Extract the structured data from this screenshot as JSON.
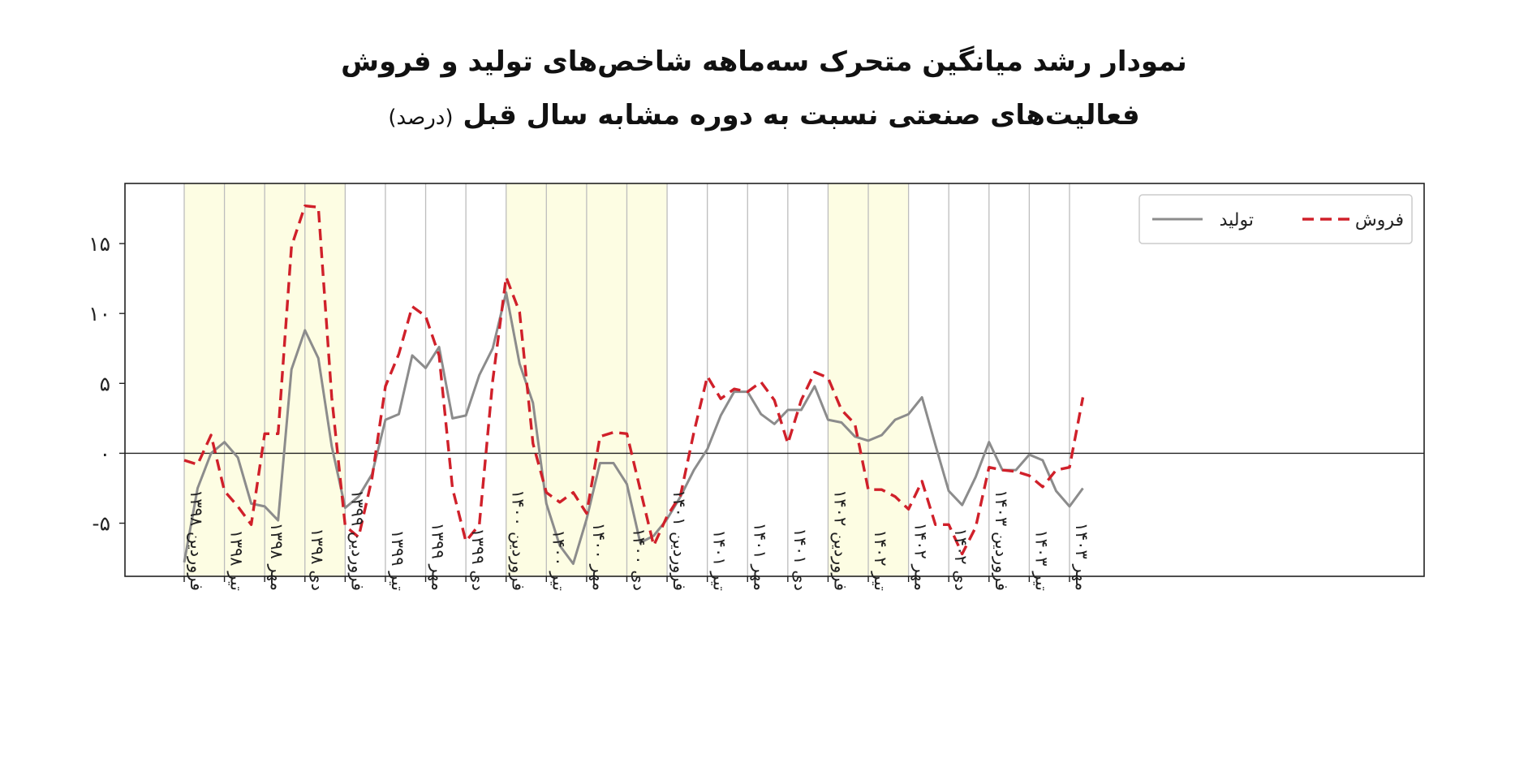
{
  "chart_data": {
    "type": "line",
    "title": "نمودار رشد میانگین متحرک سه‌ماهه شاخص‌های تولید و فروش",
    "subtitle": "فعالیت‌های صنعتی نسبت به دوره مشابه سال قبل",
    "unit": "(درصد)",
    "y_ticks": [
      {
        "value": 15,
        "label": "۱۵"
      },
      {
        "value": 10,
        "label": "۱۰"
      },
      {
        "value": 5,
        "label": "۵"
      },
      {
        "value": 0,
        "label": "۰"
      },
      {
        "value": -5,
        "label": "-۵"
      }
    ],
    "ylim": [
      -8.8,
      19.3
    ],
    "x_tick_labels": [
      "فروردین ۱۳۹۸",
      "تیر ۱۳۹۸",
      "مهر ۱۳۹۸",
      "دی ۱۳۹۸",
      "فروردین ۱۳۹۹",
      "تیر ۱۳۹۹",
      "مهر ۱۳۹۹",
      "دی ۱۳۹۹",
      "فروردین ۱۴۰۰",
      "تیر ۱۴۰۰",
      "مهر ۱۴۰۰",
      "دی ۱۴۰۰",
      "فروردین ۱۴۰۱",
      "تیر ۱۴۰۱",
      "مهر ۱۴۰۱",
      "دی ۱۴۰۱",
      "فروردین ۱۴۰۲",
      "تیر ۱۴۰۲",
      "مهر ۱۴۰۲",
      "دی ۱۴۰۲",
      "فروردین ۱۴۰۳",
      "تیر ۱۴۰۳",
      "مهر ۱۴۰۳"
    ],
    "shaded_periods": [
      {
        "from": "فروردین ۱۳۹۸",
        "to": "فروردین ۱۳۹۹"
      },
      {
        "from": "فروردین ۱۴۰۰",
        "to": "فروردین ۱۴۰۱"
      },
      {
        "from": "فروردین ۱۴۰۲",
        "to": "مهر ۱۴۰۲"
      }
    ],
    "shade_color": "#fdfde3",
    "grid_color": "#bdbdbd",
    "zero_line": true,
    "legend": {
      "placement": "top-right"
    },
    "series": [
      {
        "name": "تولید",
        "color": "#8c8c8c",
        "style": "solid",
        "values": [
          -7.8,
          -2.5,
          0,
          0.8,
          -0.3,
          -3.6,
          -3.8,
          -4.8,
          6,
          8.8,
          6.8,
          0.5,
          -3.9,
          -3.1,
          -1.5,
          2.4,
          2.8,
          7,
          6.1,
          7.6,
          2.5,
          2.7,
          5.6,
          7.5,
          11.5,
          6.4,
          3.6,
          -3.6,
          -6.6,
          -7.9,
          -4.7,
          -0.7,
          -0.7,
          -2.2,
          -6.4,
          -5.9,
          -4.7,
          -3.1,
          -1.2,
          0.3,
          2.7,
          4.4,
          4.4,
          2.8,
          2.1,
          3.1,
          3.1,
          4.8,
          2.4,
          2.2,
          1.2,
          0.9,
          1.3,
          2.4,
          2.8,
          4,
          0.6,
          -2.7,
          -3.7,
          -1.7,
          0.8,
          -1.2,
          -1.2,
          -0.1,
          -0.5,
          -2.7,
          -3.8,
          -2.5
        ]
      },
      {
        "name": "فروش",
        "color": "#d0202a",
        "style": "dashed",
        "values": [
          -0.5,
          -0.8,
          1.3,
          -2.7,
          -3.8,
          -5.1,
          1.4,
          1.4,
          14.8,
          17.7,
          17.6,
          4,
          -5.2,
          -6,
          -1.8,
          4.8,
          7.1,
          10.5,
          9.8,
          7,
          -2.5,
          -6.3,
          -5.1,
          5.2,
          12.6,
          10.1,
          0.7,
          -2.8,
          -3.5,
          -2.8,
          -4.3,
          1.2,
          1.5,
          1.4,
          -2.6,
          -6.6,
          -4.5,
          -3,
          1.5,
          5.5,
          3.9,
          4.6,
          4.4,
          5.1,
          3.8,
          0.7,
          3.8,
          5.8,
          5.4,
          3.1,
          2.1,
          -2.6,
          -2.6,
          -3.1,
          -4,
          -2,
          -5.1,
          -5.1,
          -7.2,
          -5.3,
          -1,
          -1.2,
          -1.3,
          -1.6,
          -2.4,
          -1.2,
          -1,
          4
        ]
      }
    ]
  }
}
